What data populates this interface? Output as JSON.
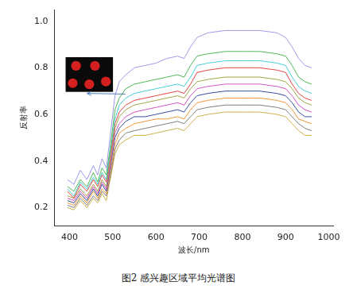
{
  "chart_data": {
    "type": "line",
    "title": "图2 感兴趣区域平均光谱图",
    "x_label": "波长/nm",
    "y_label": "反射率",
    "x": [
      395,
      410,
      425,
      440,
      455,
      465,
      475,
      485,
      495,
      505,
      515,
      530,
      550,
      575,
      600,
      625,
      650,
      665,
      680,
      695,
      720,
      760,
      800,
      840,
      880,
      900,
      915,
      930,
      945,
      960
    ],
    "xlim": [
      365,
      1010
    ],
    "xticks": [
      400,
      500,
      600,
      700,
      800,
      900,
      1000
    ],
    "ylim": [
      0.12,
      1.05
    ],
    "yticks": [
      0.2,
      0.4,
      0.6,
      0.8,
      {
        "value": 1,
        "label": "1.0"
      }
    ],
    "grid": false,
    "line_style": "solid",
    "marker": "none",
    "series": [
      {
        "color": "#8f8fe6",
        "values": [
          0.32,
          0.3,
          0.36,
          0.32,
          0.38,
          0.34,
          0.41,
          0.37,
          0.52,
          0.68,
          0.74,
          0.77,
          0.8,
          0.81,
          0.82,
          0.84,
          0.85,
          0.84,
          0.89,
          0.93,
          0.95,
          0.96,
          0.96,
          0.96,
          0.95,
          0.93,
          0.89,
          0.84,
          0.81,
          0.8
        ]
      },
      {
        "color": "#3cb043",
        "values": [
          0.29,
          0.27,
          0.32,
          0.29,
          0.35,
          0.31,
          0.37,
          0.34,
          0.47,
          0.62,
          0.67,
          0.71,
          0.73,
          0.74,
          0.75,
          0.76,
          0.77,
          0.76,
          0.81,
          0.85,
          0.86,
          0.87,
          0.87,
          0.87,
          0.86,
          0.85,
          0.81,
          0.76,
          0.74,
          0.73
        ]
      },
      {
        "color": "#30c8d0",
        "values": [
          0.28,
          0.25,
          0.31,
          0.28,
          0.33,
          0.3,
          0.35,
          0.32,
          0.45,
          0.58,
          0.64,
          0.67,
          0.69,
          0.7,
          0.71,
          0.72,
          0.73,
          0.72,
          0.76,
          0.81,
          0.82,
          0.83,
          0.83,
          0.83,
          0.82,
          0.81,
          0.76,
          0.72,
          0.7,
          0.69
        ]
      },
      {
        "color": "#e03030",
        "values": [
          0.27,
          0.24,
          0.3,
          0.27,
          0.32,
          0.29,
          0.34,
          0.31,
          0.43,
          0.56,
          0.61,
          0.64,
          0.66,
          0.67,
          0.68,
          0.69,
          0.7,
          0.69,
          0.73,
          0.78,
          0.79,
          0.8,
          0.8,
          0.8,
          0.79,
          0.78,
          0.73,
          0.69,
          0.67,
          0.66
        ]
      },
      {
        "color": "#9a9a30",
        "values": [
          0.25,
          0.24,
          0.28,
          0.25,
          0.3,
          0.27,
          0.32,
          0.29,
          0.41,
          0.54,
          0.59,
          0.62,
          0.64,
          0.65,
          0.66,
          0.67,
          0.68,
          0.67,
          0.71,
          0.74,
          0.75,
          0.76,
          0.76,
          0.76,
          0.75,
          0.74,
          0.71,
          0.67,
          0.65,
          0.64
        ]
      },
      {
        "color": "#d040c0",
        "values": [
          0.24,
          0.23,
          0.27,
          0.24,
          0.29,
          0.26,
          0.31,
          0.28,
          0.39,
          0.52,
          0.56,
          0.59,
          0.61,
          0.62,
          0.63,
          0.64,
          0.65,
          0.64,
          0.68,
          0.71,
          0.72,
          0.73,
          0.73,
          0.73,
          0.72,
          0.71,
          0.68,
          0.64,
          0.62,
          0.61
        ]
      },
      {
        "color": "#203a90",
        "values": [
          0.23,
          0.22,
          0.26,
          0.23,
          0.28,
          0.25,
          0.3,
          0.27,
          0.38,
          0.5,
          0.54,
          0.57,
          0.59,
          0.59,
          0.6,
          0.61,
          0.62,
          0.61,
          0.65,
          0.68,
          0.69,
          0.7,
          0.7,
          0.7,
          0.69,
          0.68,
          0.65,
          0.61,
          0.59,
          0.59
        ]
      },
      {
        "color": "#f08a20",
        "values": [
          0.22,
          0.21,
          0.25,
          0.22,
          0.27,
          0.24,
          0.28,
          0.26,
          0.36,
          0.47,
          0.52,
          0.54,
          0.56,
          0.57,
          0.58,
          0.58,
          0.59,
          0.58,
          0.62,
          0.65,
          0.66,
          0.67,
          0.67,
          0.67,
          0.66,
          0.65,
          0.62,
          0.58,
          0.57,
          0.56
        ]
      },
      {
        "color": "#707070",
        "values": [
          0.21,
          0.2,
          0.24,
          0.21,
          0.25,
          0.23,
          0.27,
          0.25,
          0.34,
          0.45,
          0.49,
          0.52,
          0.53,
          0.54,
          0.55,
          0.56,
          0.57,
          0.56,
          0.59,
          0.62,
          0.63,
          0.64,
          0.64,
          0.64,
          0.63,
          0.62,
          0.59,
          0.56,
          0.54,
          0.53
        ]
      },
      {
        "color": "#c8a838",
        "values": [
          0.2,
          0.19,
          0.23,
          0.2,
          0.24,
          0.22,
          0.26,
          0.23,
          0.33,
          0.43,
          0.47,
          0.49,
          0.51,
          0.51,
          0.52,
          0.53,
          0.54,
          0.53,
          0.56,
          0.59,
          0.6,
          0.61,
          0.61,
          0.61,
          0.6,
          0.59,
          0.56,
          0.53,
          0.51,
          0.51
        ]
      }
    ]
  }
}
